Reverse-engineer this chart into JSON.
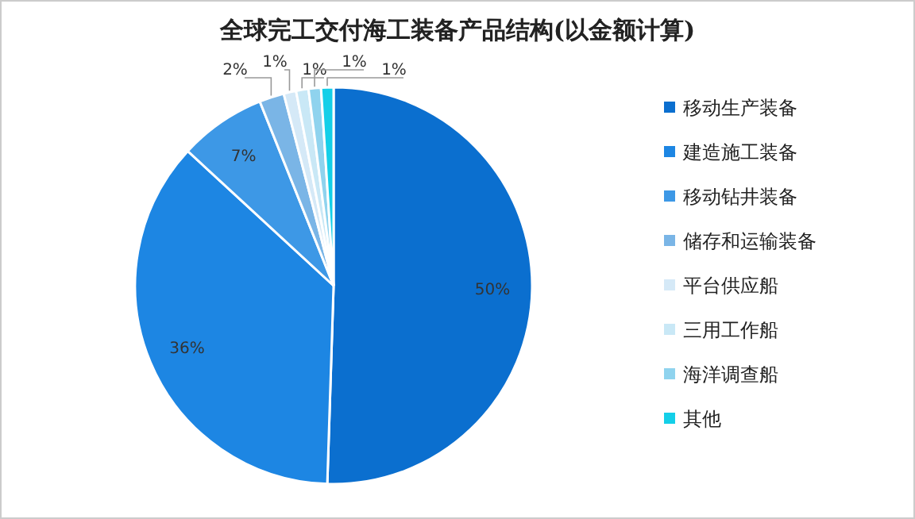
{
  "chart_data": {
    "type": "pie",
    "title": "全球完工交付海工装备产品结构(以金额计算)",
    "categories": [
      "移动生产装备",
      "建造施工装备",
      "移动钻井装备",
      "储存和运输装备",
      "平台供应船",
      "三用工作船",
      "海洋调查船",
      "其他"
    ],
    "values": [
      50,
      36,
      7,
      2,
      1,
      1,
      1,
      1
    ],
    "colors": [
      "#0b6fcf",
      "#1d86e3",
      "#3d98e6",
      "#7ab5e6",
      "#d5e9f7",
      "#c9e8f6",
      "#8fd3ee",
      "#14cfe8"
    ],
    "value_labels": [
      "50%",
      "36%",
      "7%",
      "2%",
      "1%",
      "1%",
      "1%",
      "1%"
    ],
    "legend": "right"
  }
}
